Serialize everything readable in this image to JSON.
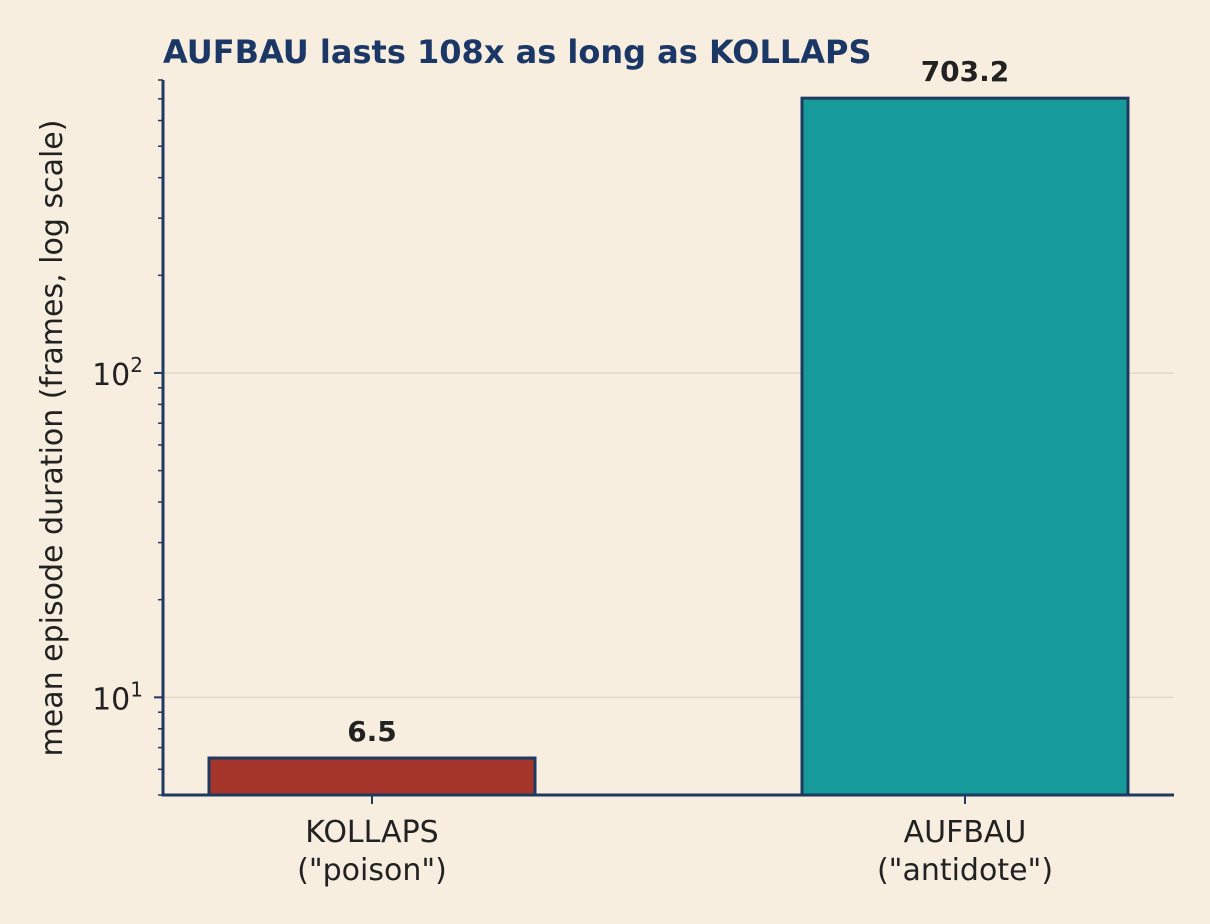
{
  "chart_data": {
    "type": "bar",
    "title": "AUFBAU lasts 108x as long as KOLLAPS",
    "xlabel": "",
    "ylabel": "mean episode duration (frames, log scale)",
    "yscale": "log",
    "ylim": [
      5.0,
      800
    ],
    "grid": "horizontal, at major ticks",
    "categories": [
      {
        "name": "KOLLAPS",
        "note": "(\"poison\")"
      },
      {
        "name": "AUFBAU",
        "note": "(\"antidote\")"
      }
    ],
    "values": [
      6.5,
      703.2
    ],
    "value_labels": [
      "6.5",
      "703.2"
    ],
    "bar_colors": [
      "#A5352B",
      "#169A9A"
    ],
    "yticks": [
      {
        "value": 10,
        "base": "10",
        "exp": "1"
      },
      {
        "value": 100,
        "base": "10",
        "exp": "2"
      }
    ]
  },
  "colors": {
    "background": "#F7EEE0",
    "axis": "#1E3A60",
    "title": "#1B3766",
    "grid": "#E2D8C6",
    "text": "#222222",
    "bar_edge": "#1E3A60"
  }
}
